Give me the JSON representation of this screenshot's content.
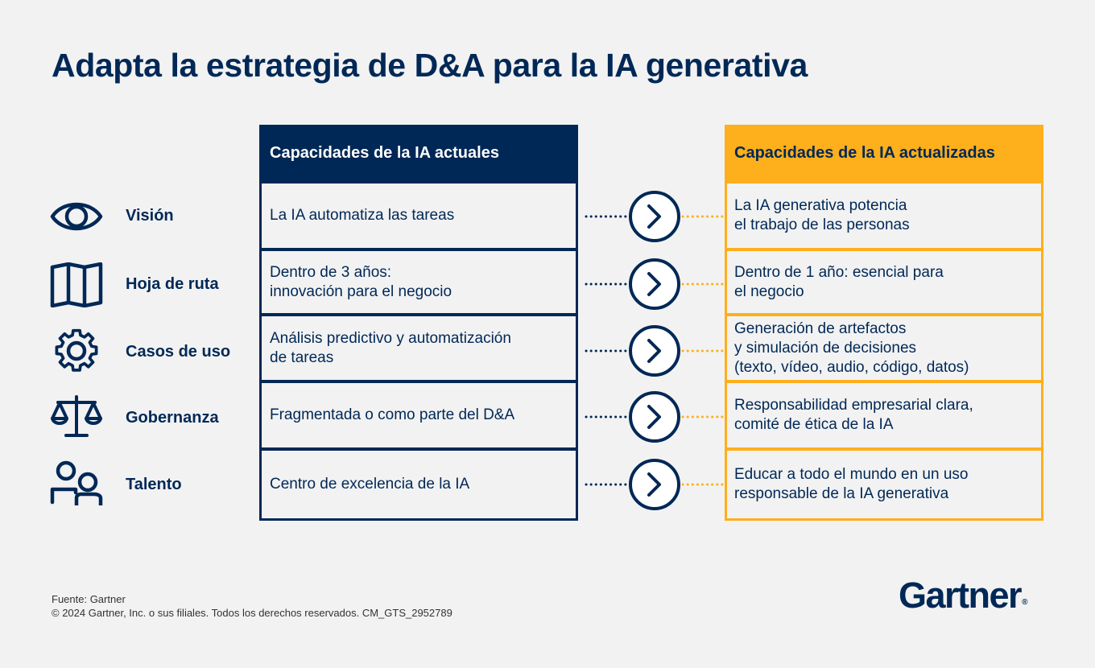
{
  "title": "Adapta la estrategia de D&A para la IA generativa",
  "headers": {
    "current": "Capacidades de la IA actuales",
    "updated": "Capacidades de la IA actualizadas"
  },
  "rows": [
    {
      "label": "Visión",
      "icon": "eye-icon",
      "current": "La IA automatiza las tareas",
      "updated": "La IA generativa potencia\nel trabajo de las personas"
    },
    {
      "label": "Hoja de ruta",
      "icon": "map-icon",
      "current": "Dentro de 3 años:\ninnovación para el negocio",
      "updated": "Dentro de 1 año: esencial para\nel negocio"
    },
    {
      "label": "Casos de uso",
      "icon": "gear-icon",
      "current": "Análisis predictivo y automatización\nde tareas",
      "updated": "Generación de artefactos\ny simulación de decisiones\n(texto, vídeo, audio, código, datos)"
    },
    {
      "label": "Gobernanza",
      "icon": "scales-icon",
      "current": "Fragmentada o como parte del D&A",
      "updated": "Responsabilidad empresarial clara,\ncomité de ética de la IA"
    },
    {
      "label": "Talento",
      "icon": "people-icon",
      "current": "Centro de excelencia de la IA",
      "updated": "Educar a todo el mundo en un uso\nresponsable de la IA generativa"
    }
  ],
  "footer": {
    "source": "Fuente: Gartner",
    "copyright": "© 2024 Gartner, Inc. o sus filiales. Todos los derechos reservados. CM_GTS_2952789"
  },
  "brand": {
    "name": "Gartner",
    "registered": "®"
  },
  "colors": {
    "navy": "#002856",
    "gold": "#fdaf1c",
    "background": "#f2f2f2"
  }
}
